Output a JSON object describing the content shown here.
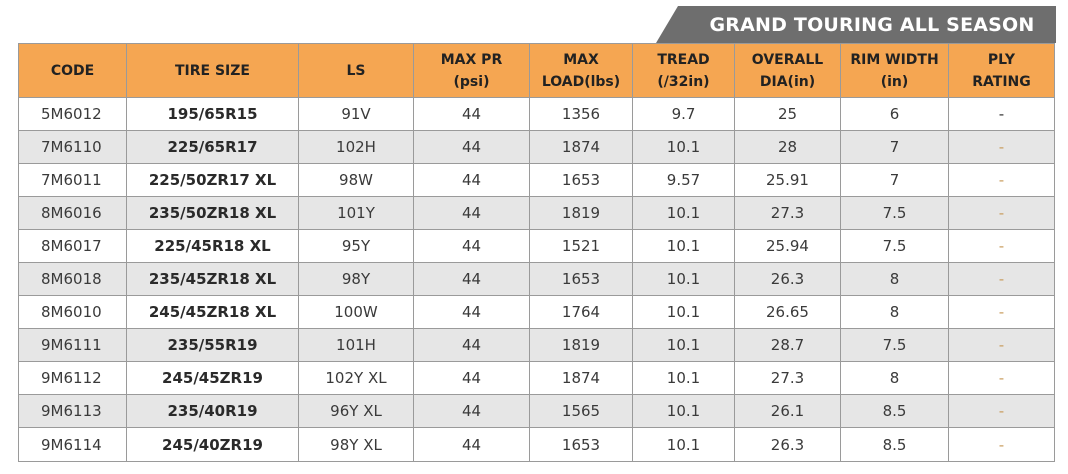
{
  "banner": {
    "title": "GRAND TOURING ALL SEASON"
  },
  "colors": {
    "header_bg": "#f5a652",
    "banner_bg": "#6e6e6e",
    "shade_row": "#e6e6e6"
  },
  "table": {
    "headers": [
      {
        "line1": "CODE",
        "line2": ""
      },
      {
        "line1": "TIRE SIZE",
        "line2": ""
      },
      {
        "line1": "LS",
        "line2": ""
      },
      {
        "line1": "MAX PR",
        "line2": "(psi)"
      },
      {
        "line1": "MAX",
        "line2": "LOAD(lbs)"
      },
      {
        "line1": "TREAD",
        "line2": "(/32in)"
      },
      {
        "line1": "OVERALL",
        "line2": "DIA(in)"
      },
      {
        "line1": "RIM WIDTH",
        "line2": "(in)"
      },
      {
        "line1": "PLY",
        "line2": "RATING"
      }
    ],
    "rows": [
      {
        "code": "5M6012",
        "size": "195/65R15",
        "ls": "91V",
        "max_pr": "44",
        "max_load": "1356",
        "tread": "9.7",
        "overall_dia": "25",
        "rim_width": "6",
        "ply": "-"
      },
      {
        "code": "7M6110",
        "size": "225/65R17",
        "ls": "102H",
        "max_pr": "44",
        "max_load": "1874",
        "tread": "10.1",
        "overall_dia": "28",
        "rim_width": "7",
        "ply": "-"
      },
      {
        "code": "7M6011",
        "size": "225/50ZR17 XL",
        "ls": "98W",
        "max_pr": "44",
        "max_load": "1653",
        "tread": "9.57",
        "overall_dia": "25.91",
        "rim_width": "7",
        "ply": "-"
      },
      {
        "code": "8M6016",
        "size": "235/50ZR18 XL",
        "ls": "101Y",
        "max_pr": "44",
        "max_load": "1819",
        "tread": "10.1",
        "overall_dia": "27.3",
        "rim_width": "7.5",
        "ply": "-"
      },
      {
        "code": "8M6017",
        "size": "225/45R18 XL",
        "ls": "95Y",
        "max_pr": "44",
        "max_load": "1521",
        "tread": "10.1",
        "overall_dia": "25.94",
        "rim_width": "7.5",
        "ply": "-"
      },
      {
        "code": "8M6018",
        "size": "235/45ZR18 XL",
        "ls": "98Y",
        "max_pr": "44",
        "max_load": "1653",
        "tread": "10.1",
        "overall_dia": "26.3",
        "rim_width": "8",
        "ply": "-"
      },
      {
        "code": "8M6010",
        "size": "245/45ZR18 XL",
        "ls": "100W",
        "max_pr": "44",
        "max_load": "1764",
        "tread": "10.1",
        "overall_dia": "26.65",
        "rim_width": "8",
        "ply": "-"
      },
      {
        "code": "9M6111",
        "size": "235/55R19",
        "ls": "101H",
        "max_pr": "44",
        "max_load": "1819",
        "tread": "10.1",
        "overall_dia": "28.7",
        "rim_width": "7.5",
        "ply": "-"
      },
      {
        "code": "9M6112",
        "size": "245/45ZR19",
        "ls": "102Y XL",
        "max_pr": "44",
        "max_load": "1874",
        "tread": "10.1",
        "overall_dia": "27.3",
        "rim_width": "8",
        "ply": "-"
      },
      {
        "code": "9M6113",
        "size": "235/40R19",
        "ls": "96Y XL",
        "max_pr": "44",
        "max_load": "1565",
        "tread": "10.1",
        "overall_dia": "26.1",
        "rim_width": "8.5",
        "ply": "-"
      },
      {
        "code": "9M6114",
        "size": "245/40ZR19",
        "ls": "98Y XL",
        "max_pr": "44",
        "max_load": "1653",
        "tread": "10.1",
        "overall_dia": "26.3",
        "rim_width": "8.5",
        "ply": "-"
      }
    ]
  }
}
